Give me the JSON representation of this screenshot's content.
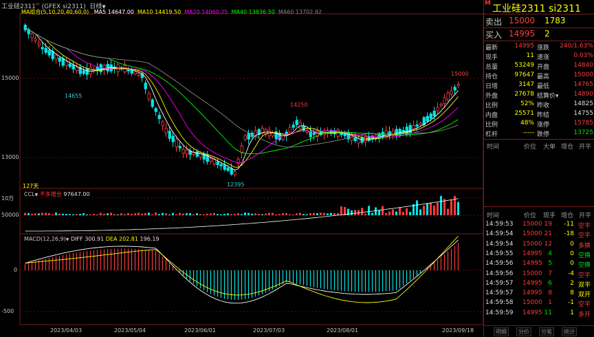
{
  "header": {
    "symbol_label": "工业硅2311",
    "superscript": "m",
    "market_code": "(GFEX si2311)",
    "period": "日线",
    "period_arrow": "▼"
  },
  "ma_legend": {
    "group": "MA组合(5,10,20,40,60,0)",
    "items": [
      {
        "label": "MA5 14647.00",
        "color": "#ffffff"
      },
      {
        "label": "MA10 14419.50",
        "color": "#ffff00"
      },
      {
        "label": "MA20 14060.25",
        "color": "#ff00ff"
      },
      {
        "label": "MA40 13836.50",
        "color": "#00ff00"
      },
      {
        "label": "MA60 13702.92",
        "color": "#888888"
      }
    ]
  },
  "price_axis": {
    "labels": [
      "15000",
      "13000"
    ]
  },
  "price_notes": {
    "high_label": "15000",
    "mid_high_label": "14250",
    "left_low_label": "14655",
    "low_label": "12395",
    "bars_count": "127天"
  },
  "ccl": {
    "title": "CCL",
    "arrow": "▼",
    "subtitle": "不多增仓",
    "value": "97647.00",
    "axis_labels": [
      "10万",
      "50000"
    ],
    "unit_mark": "万"
  },
  "macd": {
    "title": "MACD(12,26,9)",
    "arrow": "▼",
    "diff_label": "DIFF 300.91",
    "dea_label": "DEA 202.81",
    "macd_value": "196.19",
    "axis_labels": [
      "0",
      "-500"
    ]
  },
  "date_axis": [
    "2023/04/03",
    "2023/05/04",
    "2023/06/01",
    "2023/07/03",
    "2023/08/01",
    "2023/09/18"
  ],
  "panel": {
    "title": "工业硅2311  si2311",
    "m_mark": "M",
    "sell": {
      "label": "卖出",
      "price": "15000",
      "vol": "1783"
    },
    "buy": {
      "label": "买入",
      "price": "14995",
      "vol": "2"
    },
    "stats": [
      {
        "l1": "最新",
        "v1": "14995",
        "c1": "red",
        "l2": "涨跌",
        "v2": "240/1.63%",
        "c2": "red"
      },
      {
        "l1": "现手",
        "v1": "11",
        "c1": "yel",
        "l2": "速涨",
        "v2": "0.03%",
        "c2": "red"
      },
      {
        "l1": "总量",
        "v1": "53249",
        "c1": "yel",
        "l2": "开盘",
        "v2": "14840",
        "c2": "red"
      },
      {
        "l1": "持仓",
        "v1": "97647",
        "c1": "yel",
        "l2": "最高",
        "v2": "15000",
        "c2": "red"
      },
      {
        "l1": "日增",
        "v1": "3147",
        "c1": "yel",
        "l2": "最低",
        "v2": "14765",
        "c2": "red"
      },
      {
        "l1": "外盘",
        "v1": "27678",
        "c1": "yel",
        "l2": "结算价▾",
        "v2": "14890",
        "c2": "red"
      },
      {
        "l1": "比例",
        "v1": "52%",
        "c1": "yel",
        "l2": "昨收",
        "v2": "14825",
        "c2": "wht"
      },
      {
        "l1": "内盘",
        "v1": "25571",
        "c1": "yel",
        "l2": "昨结",
        "v2": "14755",
        "c2": "wht"
      },
      {
        "l1": "比例",
        "v1": "48%",
        "c1": "yel",
        "l2": "涨停",
        "v2": "15785",
        "c2": "red"
      },
      {
        "l1": "杠杆",
        "v1": "-----",
        "c1": "yel",
        "l2": "跌停",
        "v2": "13725",
        "c2": "grn"
      }
    ],
    "tick_headers": [
      "时间",
      "价位",
      "大单",
      "增仓",
      "开平"
    ],
    "trade_headers": [
      "时间",
      "价位",
      "现手",
      "增仓",
      "开平"
    ],
    "trades": [
      {
        "time": "14:59:53",
        "price": "15000",
        "pc": "red",
        "vol": "19",
        "vc": "red",
        "oi": "-11",
        "oc": "yel",
        "type": "空平",
        "tc": "red"
      },
      {
        "time": "14:59:54",
        "price": "15000",
        "pc": "red",
        "vol": "21",
        "vc": "red",
        "oi": "-18",
        "oc": "yel",
        "type": "空平",
        "tc": "red"
      },
      {
        "time": "14:59:54",
        "price": "15000",
        "pc": "red",
        "vol": "12",
        "vc": "red",
        "oi": "0",
        "oc": "yel",
        "type": "多换",
        "tc": "red"
      },
      {
        "time": "14:59:55",
        "price": "14995",
        "pc": "red",
        "vol": "4",
        "vc": "grn",
        "oi": "0",
        "oc": "yel",
        "type": "空换",
        "tc": "grn"
      },
      {
        "time": "14:59:56",
        "price": "14995",
        "pc": "red",
        "vol": "5",
        "vc": "grn",
        "oi": "0",
        "oc": "yel",
        "type": "空换",
        "tc": "grn"
      },
      {
        "time": "14:59:56",
        "price": "15000",
        "pc": "red",
        "vol": "7",
        "vc": "red",
        "oi": "-4",
        "oc": "yel",
        "type": "空平",
        "tc": "red"
      },
      {
        "time": "14:59:57",
        "price": "14995",
        "pc": "red",
        "vol": "6",
        "vc": "grn",
        "oi": "2",
        "oc": "yel",
        "type": "双平",
        "tc": "yel"
      },
      {
        "time": "14:59:57",
        "price": "14995",
        "pc": "red",
        "vol": "8",
        "vc": "red",
        "oi": "8",
        "oc": "yel",
        "type": "双开",
        "tc": "yel"
      },
      {
        "time": "14:59:58",
        "price": "15000",
        "pc": "red",
        "vol": "1",
        "vc": "red",
        "oi": "-1",
        "oc": "yel",
        "type": "空平",
        "tc": "red"
      },
      {
        "time": "14:59:59",
        "price": "14995",
        "pc": "red",
        "vol": "11",
        "vc": "grn",
        "oi": "1",
        "oc": "yel",
        "type": "多开",
        "tc": "red"
      }
    ],
    "tabs": [
      "明细",
      "分价",
      "分笔",
      "统计"
    ]
  },
  "colors": {
    "up": "#ff3b3b",
    "down": "#00e6e6",
    "border": "#7a1d1d"
  }
}
